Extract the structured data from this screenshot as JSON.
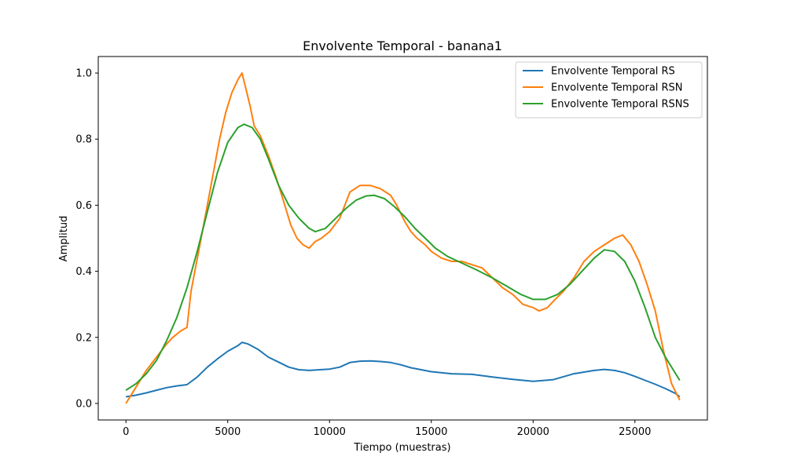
{
  "chart_data": {
    "type": "line",
    "title": "Envolvente Temporal - banana1",
    "xlabel": "Tiempo (muestras)",
    "ylabel": "Amplitud",
    "xlim": [
      -1360,
      28560
    ],
    "ylim": [
      -0.05,
      1.05
    ],
    "xticks": [
      0,
      5000,
      10000,
      15000,
      20000,
      25000
    ],
    "xtick_labels": [
      "0",
      "5000",
      "10000",
      "15000",
      "20000",
      "25000"
    ],
    "yticks": [
      0.0,
      0.2,
      0.4,
      0.6,
      0.8,
      1.0
    ],
    "ytick_labels": [
      "0.0",
      "0.2",
      "0.4",
      "0.6",
      "0.8",
      "1.0"
    ],
    "grid": false,
    "legend_position": "top-right",
    "series": [
      {
        "name": "Envolvente Temporal RS",
        "color": "#1f77b4",
        "x": [
          0,
          500,
          1000,
          1500,
          2000,
          2500,
          3000,
          3500,
          4000,
          4500,
          5000,
          5500,
          5700,
          6000,
          6500,
          7000,
          7500,
          8000,
          8500,
          9000,
          9500,
          10000,
          10500,
          11000,
          11500,
          12000,
          12500,
          13000,
          13500,
          14000,
          15000,
          16000,
          17000,
          18000,
          19000,
          20000,
          21000,
          22000,
          23000,
          23500,
          24000,
          24500,
          25000,
          25500,
          26000,
          26500,
          27000,
          27200
        ],
        "y": [
          0.02,
          0.025,
          0.032,
          0.04,
          0.048,
          0.053,
          0.057,
          0.08,
          0.11,
          0.135,
          0.158,
          0.175,
          0.185,
          0.18,
          0.163,
          0.14,
          0.125,
          0.11,
          0.102,
          0.1,
          0.102,
          0.104,
          0.11,
          0.124,
          0.128,
          0.129,
          0.127,
          0.124,
          0.117,
          0.108,
          0.096,
          0.09,
          0.088,
          0.08,
          0.073,
          0.067,
          0.072,
          0.09,
          0.1,
          0.103,
          0.1,
          0.093,
          0.082,
          0.07,
          0.058,
          0.045,
          0.03,
          0.02
        ]
      },
      {
        "name": "Envolvente Temporal RSN",
        "color": "#ff7f0e",
        "x": [
          0,
          300,
          600,
          1000,
          1500,
          2000,
          2300,
          2700,
          3000,
          3200,
          3600,
          4000,
          4300,
          4600,
          4900,
          5200,
          5500,
          5700,
          5900,
          6100,
          6300,
          6600,
          7000,
          7400,
          7800,
          8100,
          8400,
          8700,
          9000,
          9300,
          9600,
          10000,
          10500,
          11000,
          11500,
          12000,
          12500,
          13000,
          13300,
          13700,
          14000,
          14300,
          14700,
          15000,
          15500,
          16000,
          16500,
          17000,
          17500,
          18000,
          18500,
          19000,
          19500,
          20000,
          20300,
          20700,
          21000,
          21500,
          22000,
          22500,
          23000,
          23500,
          24000,
          24400,
          24800,
          25200,
          25600,
          26000,
          26400,
          26800,
          27200
        ],
        "y": [
          0.0,
          0.03,
          0.06,
          0.1,
          0.14,
          0.18,
          0.2,
          0.22,
          0.23,
          0.34,
          0.47,
          0.6,
          0.7,
          0.8,
          0.88,
          0.94,
          0.98,
          1.0,
          0.95,
          0.9,
          0.84,
          0.81,
          0.75,
          0.68,
          0.6,
          0.54,
          0.5,
          0.48,
          0.47,
          0.49,
          0.5,
          0.52,
          0.56,
          0.64,
          0.66,
          0.66,
          0.65,
          0.63,
          0.6,
          0.55,
          0.52,
          0.5,
          0.48,
          0.46,
          0.44,
          0.43,
          0.43,
          0.42,
          0.41,
          0.38,
          0.35,
          0.33,
          0.3,
          0.29,
          0.28,
          0.29,
          0.31,
          0.34,
          0.38,
          0.43,
          0.46,
          0.48,
          0.5,
          0.51,
          0.48,
          0.43,
          0.36,
          0.28,
          0.16,
          0.06,
          0.01
        ]
      },
      {
        "name": "Envolvente Temporal RSNS",
        "color": "#2ca02c",
        "x": [
          0,
          500,
          1000,
          1500,
          2000,
          2500,
          3000,
          3500,
          4000,
          4500,
          5000,
          5500,
          5800,
          6200,
          6600,
          7000,
          7500,
          8000,
          8500,
          9000,
          9300,
          9800,
          10300,
          10800,
          11300,
          11800,
          12200,
          12700,
          13200,
          13700,
          14200,
          14700,
          15200,
          15800,
          16500,
          17200,
          18000,
          18700,
          19400,
          20000,
          20600,
          21200,
          21800,
          22400,
          23000,
          23500,
          24000,
          24500,
          25000,
          25500,
          26000,
          26500,
          27200
        ],
        "y": [
          0.04,
          0.06,
          0.09,
          0.13,
          0.19,
          0.26,
          0.35,
          0.46,
          0.58,
          0.7,
          0.79,
          0.835,
          0.845,
          0.835,
          0.8,
          0.74,
          0.66,
          0.6,
          0.56,
          0.53,
          0.52,
          0.53,
          0.56,
          0.59,
          0.615,
          0.628,
          0.63,
          0.62,
          0.595,
          0.565,
          0.53,
          0.5,
          0.47,
          0.445,
          0.425,
          0.405,
          0.38,
          0.355,
          0.33,
          0.315,
          0.315,
          0.33,
          0.36,
          0.4,
          0.44,
          0.465,
          0.46,
          0.43,
          0.37,
          0.29,
          0.2,
          0.14,
          0.07
        ]
      }
    ]
  }
}
